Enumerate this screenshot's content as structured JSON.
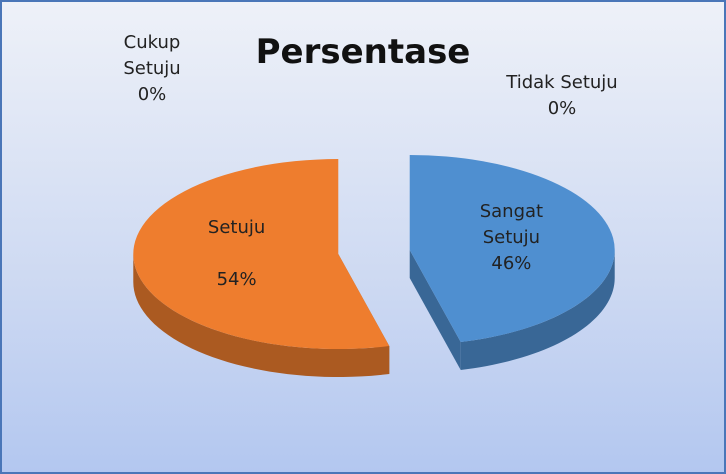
{
  "chart_data": {
    "type": "pie",
    "title": "Persentase",
    "categories": [
      "Sangat Setuju",
      "Setuju",
      "Cukup Setuju",
      "Tidak Setuju"
    ],
    "values": [
      46,
      54,
      0,
      0
    ],
    "value_labels": [
      "46%",
      "54%",
      "0%",
      "0%"
    ],
    "colors": [
      "#4f8fd0",
      "#ee7d2e",
      "#9bbb59",
      "#8064a2"
    ]
  }
}
